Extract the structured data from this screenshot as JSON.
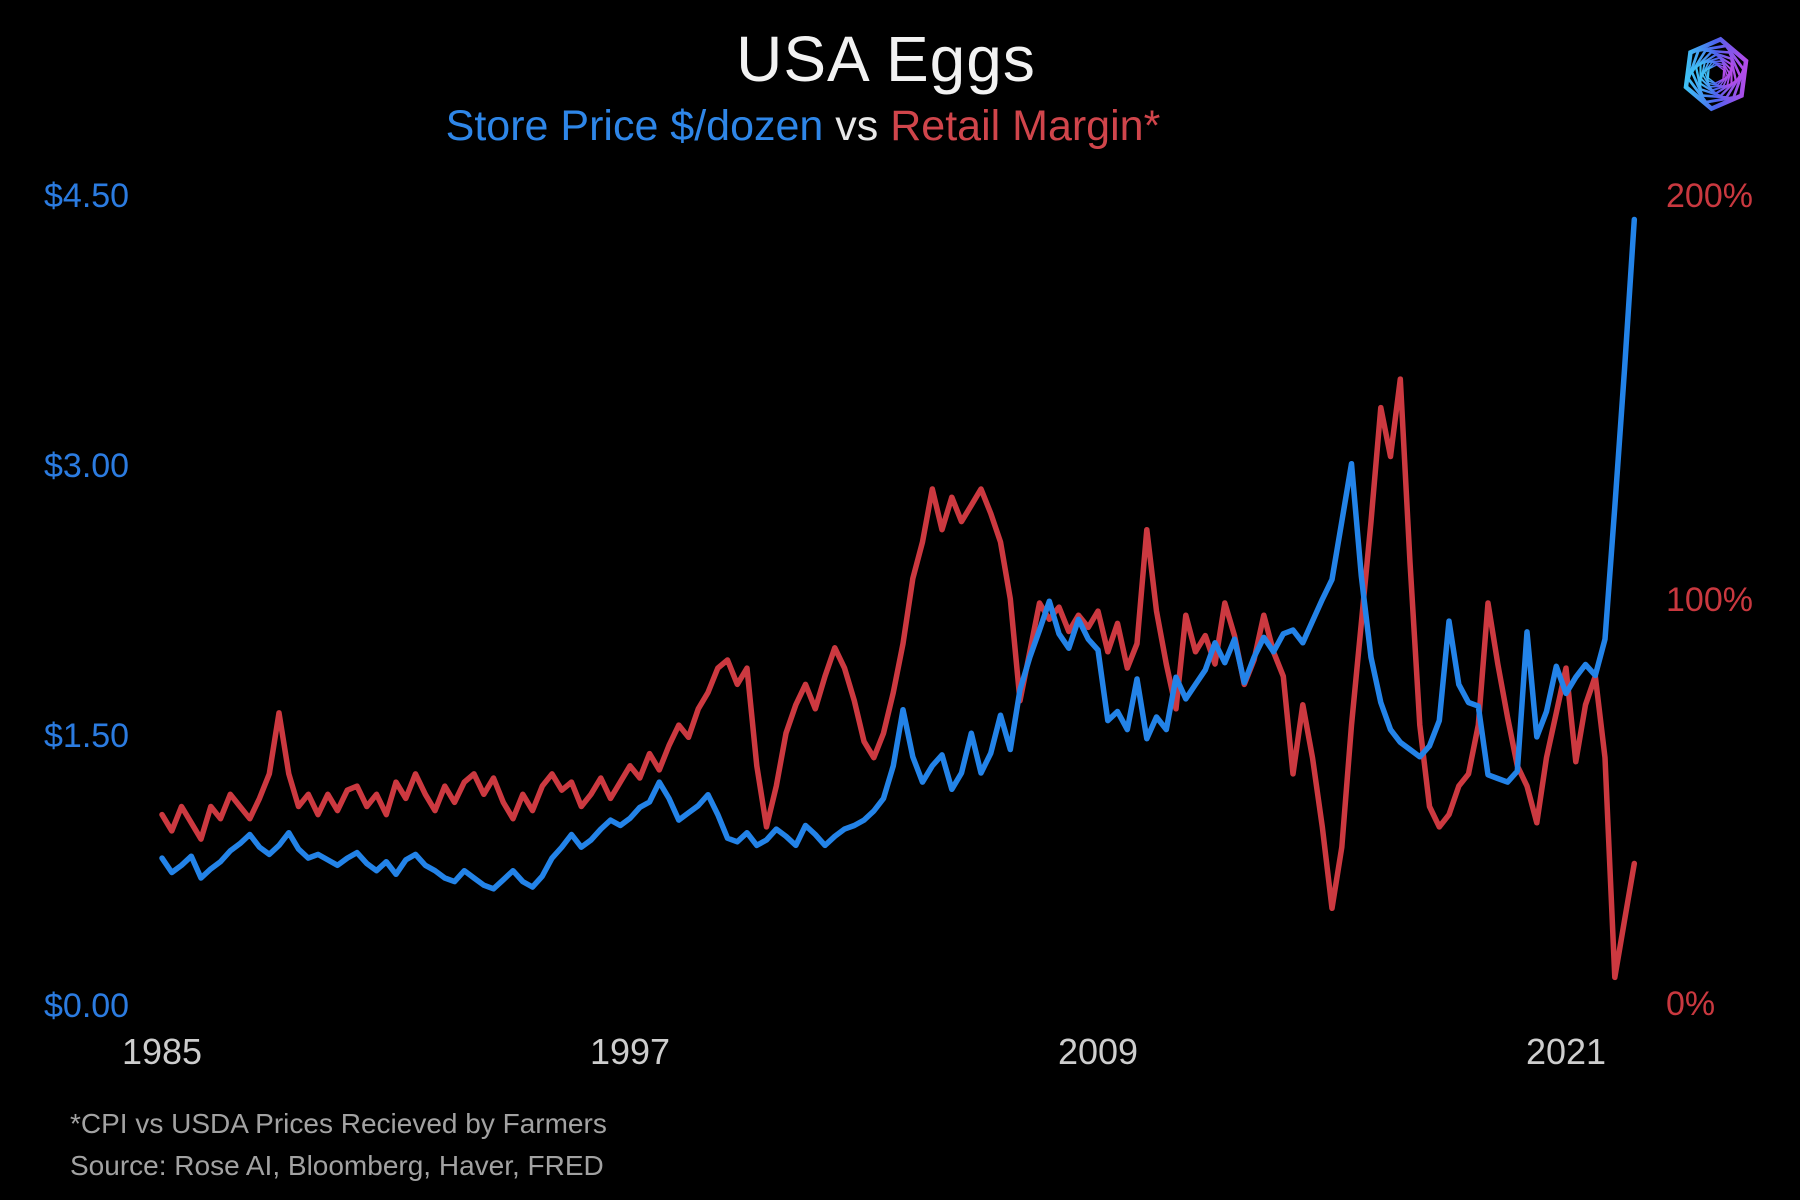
{
  "title": "USA Eggs",
  "subtitle": {
    "left": "Store Price $/dozen",
    "mid": "vs",
    "right": "Retail Margin*"
  },
  "footnotes": {
    "line1": "*CPI vs USDA Prices Recieved by Farmers",
    "line2": "Source: Rose AI, Bloomberg, Haver, FRED"
  },
  "colors": {
    "background": "#000000",
    "price_line": "#2383E8",
    "margin_line": "#CC3940",
    "left_axis_text": "#2B7BE0",
    "right_axis_text": "#C9383F",
    "x_axis_text": "#CDCDCD",
    "title_text": "#F2F2F2",
    "footnote_text": "#A2A2A2",
    "logo_gradient": [
      "#3FC1F5",
      "#4D63EE",
      "#B44BE8"
    ]
  },
  "axes": {
    "left_labels": [
      "$4.50",
      "$3.00",
      "$1.50",
      "$0.00"
    ],
    "right_labels": [
      "200%",
      "100%",
      "0%"
    ],
    "x_labels": [
      "1985",
      "1997",
      "2009",
      "2021"
    ]
  },
  "logo": {
    "name": "rose-ai-hexagon-spiral-logo"
  },
  "chart_data": {
    "type": "line",
    "title": "USA Eggs",
    "subtitle": "Store Price $/dozen vs Retail Margin*",
    "grid": false,
    "legend_position": "in-subtitle",
    "x_start": 1985.0,
    "x_step": 0.25,
    "x_end": 2022.75,
    "x_tick_labels": [
      1985,
      1997,
      2009,
      2021
    ],
    "left_axis": {
      "series": "Store Price $/dozen",
      "unit": "$",
      "range": [
        0,
        4.5
      ],
      "ticks": [
        0.0,
        1.5,
        3.0,
        4.5
      ]
    },
    "right_axis": {
      "series": "Retail Margin",
      "unit": "%",
      "range": [
        0,
        200
      ],
      "ticks": [
        0,
        100,
        200
      ]
    },
    "series": [
      {
        "name": "Store Price $/dozen",
        "axis": "left",
        "color": "#2383E8",
        "values": [
          0.84,
          0.76,
          0.8,
          0.85,
          0.73,
          0.78,
          0.82,
          0.88,
          0.92,
          0.97,
          0.9,
          0.86,
          0.91,
          0.98,
          0.89,
          0.84,
          0.86,
          0.83,
          0.8,
          0.84,
          0.87,
          0.81,
          0.77,
          0.82,
          0.75,
          0.83,
          0.86,
          0.8,
          0.77,
          0.73,
          0.71,
          0.77,
          0.73,
          0.69,
          0.67,
          0.72,
          0.77,
          0.71,
          0.68,
          0.74,
          0.84,
          0.9,
          0.97,
          0.9,
          0.94,
          1.0,
          1.05,
          1.02,
          1.06,
          1.12,
          1.15,
          1.26,
          1.17,
          1.05,
          1.09,
          1.13,
          1.19,
          1.08,
          0.95,
          0.93,
          0.98,
          0.91,
          0.94,
          1.0,
          0.96,
          0.91,
          1.02,
          0.97,
          0.91,
          0.96,
          1.0,
          1.02,
          1.05,
          1.1,
          1.17,
          1.35,
          1.66,
          1.4,
          1.26,
          1.35,
          1.41,
          1.22,
          1.31,
          1.53,
          1.31,
          1.42,
          1.63,
          1.44,
          1.77,
          1.95,
          2.1,
          2.26,
          2.08,
          2.0,
          2.16,
          2.05,
          1.99,
          1.6,
          1.65,
          1.55,
          1.83,
          1.5,
          1.62,
          1.55,
          1.84,
          1.72,
          1.8,
          1.88,
          2.03,
          1.92,
          2.05,
          1.81,
          1.95,
          2.06,
          1.98,
          2.08,
          2.1,
          2.03,
          2.15,
          2.27,
          2.38,
          2.7,
          3.02,
          2.4,
          1.95,
          1.7,
          1.55,
          1.48,
          1.44,
          1.4,
          1.46,
          1.6,
          2.15,
          1.8,
          1.7,
          1.68,
          1.3,
          1.28,
          1.26,
          1.32,
          2.09,
          1.51,
          1.65,
          1.9,
          1.75,
          1.84,
          1.91,
          1.85,
          2.05,
          2.78,
          3.54,
          4.37
        ]
      },
      {
        "name": "Retail Margin",
        "axis": "right",
        "color": "#CC3940",
        "values": [
          48,
          44,
          50,
          46,
          42,
          50,
          47,
          53,
          50,
          47,
          52,
          58,
          73,
          58,
          50,
          53,
          48,
          53,
          49,
          54,
          55,
          50,
          53,
          48,
          56,
          52,
          58,
          53,
          49,
          55,
          51,
          56,
          58,
          53,
          57,
          51,
          47,
          53,
          49,
          55,
          58,
          54,
          56,
          50,
          53,
          57,
          52,
          56,
          60,
          57,
          63,
          59,
          65,
          70,
          67,
          74,
          78,
          84,
          86,
          80,
          84,
          60,
          45,
          55,
          68,
          75,
          80,
          74,
          82,
          89,
          84,
          76,
          66,
          62,
          68,
          78,
          90,
          106,
          115,
          128,
          118,
          126,
          120,
          124,
          128,
          122,
          115,
          101,
          76,
          88,
          100,
          96,
          99,
          93,
          97,
          94,
          98,
          88,
          95,
          84,
          90,
          118,
          98,
          85,
          74,
          97,
          88,
          92,
          85,
          100,
          92,
          80,
          86,
          97,
          88,
          82,
          58,
          75,
          62,
          45,
          25,
          40,
          70,
          95,
          120,
          148,
          136,
          155,
          110,
          70,
          50,
          45,
          48,
          55,
          58,
          70,
          100,
          85,
          72,
          60,
          55,
          46,
          62,
          73,
          84,
          61,
          75,
          82,
          62,
          8,
          22,
          36
        ]
      }
    ]
  }
}
